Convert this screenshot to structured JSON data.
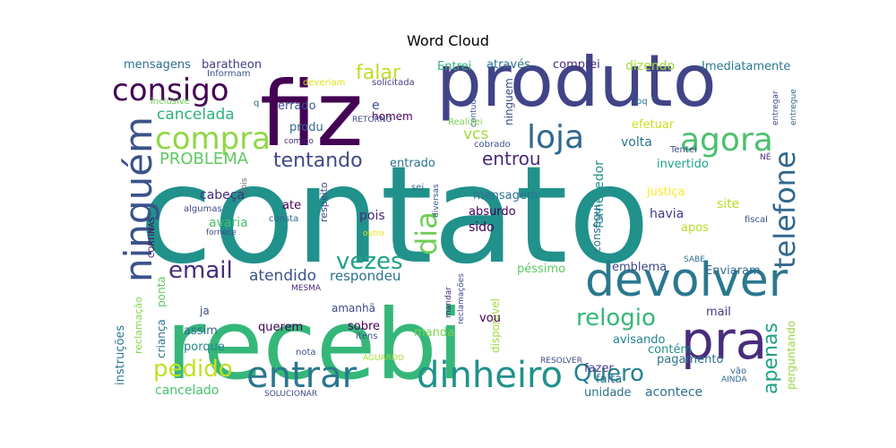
{
  "chart_data": {
    "type": "wordcloud",
    "title": "Word Cloud",
    "background": "#ffffff",
    "colormap": "viridis",
    "words": [
      {
        "text": "contato",
        "color": "#21918c"
      },
      {
        "text": "recebi",
        "color": "#35b779"
      },
      {
        "text": "fiz",
        "color": "#440154"
      },
      {
        "text": "produto",
        "color": "#414487"
      },
      {
        "text": "devolver",
        "color": "#2a788e"
      },
      {
        "text": "pra",
        "color": "#472d7b"
      },
      {
        "text": "entrar",
        "color": "#2a788e"
      },
      {
        "text": "dinheiro",
        "color": "#21918c"
      },
      {
        "text": "ninguém",
        "color": "#3b528b"
      },
      {
        "text": "loja",
        "color": "#31688e"
      },
      {
        "text": "agora",
        "color": "#4ac16d"
      },
      {
        "text": "compra",
        "color": "#90d743"
      },
      {
        "text": "consigo",
        "color": "#440154"
      },
      {
        "text": "telefone",
        "color": "#31688e"
      },
      {
        "text": "dia",
        "color": "#6ece58"
      },
      {
        "text": "vezes",
        "color": "#1fa187"
      },
      {
        "text": "email",
        "color": "#472d7b"
      },
      {
        "text": "pedido",
        "color": "#c2df23"
      },
      {
        "text": "Quero",
        "color": "#26828e"
      },
      {
        "text": "relogio",
        "color": "#35b779"
      },
      {
        "text": "apenas",
        "color": "#1fa187"
      },
      {
        "text": "falar",
        "color": "#bddf26"
      },
      {
        "text": "tentando",
        "color": "#3e4989"
      },
      {
        "text": "entrou",
        "color": "#482878"
      },
      {
        "text": "PROBLEMA",
        "color": "#5ec962"
      },
      {
        "text": "cancelada",
        "color": "#2db27d"
      },
      {
        "text": "atendido",
        "color": "#3b528b"
      },
      {
        "text": "respondeu",
        "color": "#2c728e"
      },
      {
        "text": "vcs",
        "color": "#a0da39"
      },
      {
        "text": "mensagens",
        "color": "#2e6e8e"
      },
      {
        "text": "baratheon",
        "color": "#433e85"
      },
      {
        "text": "Informam",
        "color": "#3b528b"
      },
      {
        "text": "através",
        "color": "#2c728e"
      },
      {
        "text": "comprei",
        "color": "#472d7b"
      },
      {
        "text": "dizendo",
        "color": "#a5db36"
      },
      {
        "text": "Imediatamente",
        "color": "#2a788e"
      },
      {
        "text": "Entrei",
        "color": "#35b779"
      },
      {
        "text": "solicitada",
        "color": "#433e85"
      },
      {
        "text": "deveriam",
        "color": "#dde318"
      },
      {
        "text": "contudo",
        "color": "#3b528b"
      },
      {
        "text": "pq",
        "color": "#287c8e"
      },
      {
        "text": "entregar",
        "color": "#3e4989"
      },
      {
        "text": "entregue",
        "color": "#31688e"
      },
      {
        "text": "inclusive",
        "color": "#6ece58"
      },
      {
        "text": "q",
        "color": "#31688e"
      },
      {
        "text": "errado",
        "color": "#3b528b"
      },
      {
        "text": "e",
        "color": "#3b528b"
      },
      {
        "text": "homem",
        "color": "#440154"
      },
      {
        "text": "produ",
        "color": "#31688e"
      },
      {
        "text": "RETORNO",
        "color": "#3e4989"
      },
      {
        "text": "comigo",
        "color": "#482878"
      },
      {
        "text": "Realizei",
        "color": "#7ad151"
      },
      {
        "text": "cobrado",
        "color": "#3b528b"
      },
      {
        "text": "ninguem",
        "color": "#3e4989"
      },
      {
        "text": "efetuar",
        "color": "#c8e020"
      },
      {
        "text": "Tentei",
        "color": "#3e4989"
      },
      {
        "text": "volta",
        "color": "#2c728e"
      },
      {
        "text": "invertido",
        "color": "#1fa187"
      },
      {
        "text": "NÉ",
        "color": "#482878"
      },
      {
        "text": "entrado",
        "color": "#2c728e"
      },
      {
        "text": "fornecedor",
        "color": "#21918c"
      },
      {
        "text": "consegui",
        "color": "#2e6e8e"
      },
      {
        "text": "sei",
        "color": "#2e6e8e"
      },
      {
        "text": "dois",
        "color": "#6b6b6b"
      },
      {
        "text": "cabeça",
        "color": "#472d7b"
      },
      {
        "text": "ate",
        "color": "#440154"
      },
      {
        "text": "respeito",
        "color": "#3e4989"
      },
      {
        "text": "mensagem",
        "color": "#2c728e"
      },
      {
        "text": "justiça",
        "color": "#fde725"
      },
      {
        "text": "site",
        "color": "#b5de2b"
      },
      {
        "text": "algumas",
        "color": "#3e4989"
      },
      {
        "text": "avaria",
        "color": "#4ac16d"
      },
      {
        "text": "consta",
        "color": "#31688e"
      },
      {
        "text": "fornece",
        "color": "#3e4989"
      },
      {
        "text": "pois",
        "color": "#482878"
      },
      {
        "text": "diversas",
        "color": "#3b528b"
      },
      {
        "text": "absurdo",
        "color": "#440154"
      },
      {
        "text": "havia",
        "color": "#443a83"
      },
      {
        "text": "fiscal",
        "color": "#3b528b"
      },
      {
        "text": "CORTINAS",
        "color": "#440154"
      },
      {
        "text": "outro",
        "color": "#e5e419"
      },
      {
        "text": "sido",
        "color": "#440154"
      },
      {
        "text": "apos",
        "color": "#b5de2b"
      },
      {
        "text": "SABE",
        "color": "#2e6e8e"
      },
      {
        "text": "péssimo",
        "color": "#5ec962"
      },
      {
        "text": "emblema",
        "color": "#3e4989"
      },
      {
        "text": "Enviaram",
        "color": "#31688e"
      },
      {
        "text": "MESMA",
        "color": "#482878"
      },
      {
        "text": "reclamação",
        "color": "#86d549"
      },
      {
        "text": "criança",
        "color": "#2c728e"
      },
      {
        "text": "ponta",
        "color": "#5ec962"
      },
      {
        "text": "instruções",
        "color": "#2a788e"
      },
      {
        "text": "ja",
        "color": "#3e4989"
      },
      {
        "text": "assim",
        "color": "#31688e"
      },
      {
        "text": "porque",
        "color": "#26828e"
      },
      {
        "text": "amanhã",
        "color": "#3e4989"
      },
      {
        "text": "querem",
        "color": "#440154"
      },
      {
        "text": "sobre",
        "color": "#440154"
      },
      {
        "text": "manda",
        "color": "#7ad151"
      },
      {
        "text": "mandar",
        "color": "#472d7b"
      },
      {
        "text": "reclamações",
        "color": "#3e4989"
      },
      {
        "text": "disponível",
        "color": "#a0da39"
      },
      {
        "text": "vou",
        "color": "#440154"
      },
      {
        "text": "avisando",
        "color": "#26828e"
      },
      {
        "text": "contém",
        "color": "#21918c"
      },
      {
        "text": "mail",
        "color": "#443a83"
      },
      {
        "text": "perguntando",
        "color": "#93d741"
      },
      {
        "text": "itens",
        "color": "#3b528b"
      },
      {
        "text": "nota",
        "color": "#3b528b"
      },
      {
        "text": "AGUARDO",
        "color": "#a5db36"
      },
      {
        "text": "RESOLVER",
        "color": "#3e4989"
      },
      {
        "text": "fazer",
        "color": "#433e85"
      },
      {
        "text": "pagamento",
        "color": "#2c728e"
      },
      {
        "text": "vão",
        "color": "#31688e"
      },
      {
        "text": "AINDA",
        "color": "#31688e"
      },
      {
        "text": "falta",
        "color": "#2e6e8e"
      },
      {
        "text": "unidade",
        "color": "#2c728e"
      },
      {
        "text": "acontece",
        "color": "#2e6e8e"
      },
      {
        "text": "cancelado",
        "color": "#4ac16d"
      },
      {
        "text": "SOLUCIONAR",
        "color": "#3e4989"
      }
    ]
  }
}
